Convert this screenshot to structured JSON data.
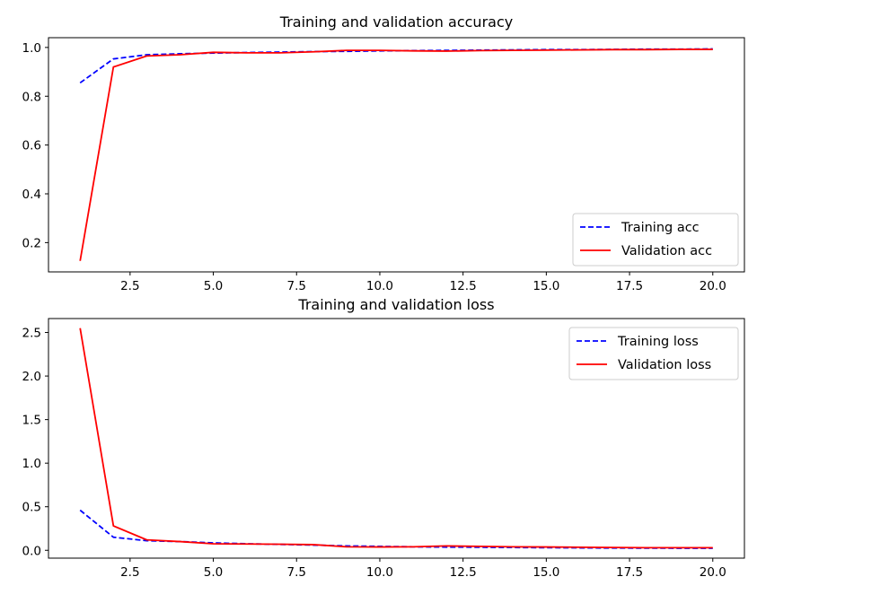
{
  "chart_data": [
    {
      "type": "line",
      "title": "Training and validation accuracy",
      "xlabel": "",
      "ylabel": "",
      "xlim": [
        0.05,
        20.95
      ],
      "ylim": [
        0.08,
        1.04
      ],
      "x_ticks": [
        2.5,
        5.0,
        7.5,
        10.0,
        12.5,
        15.0,
        17.5,
        20.0
      ],
      "x_tick_labels": [
        "2.5",
        "5.0",
        "7.5",
        "10.0",
        "12.5",
        "15.0",
        "17.5",
        "20.0"
      ],
      "y_ticks": [
        0.2,
        0.4,
        0.6,
        0.8,
        1.0
      ],
      "y_tick_labels": [
        "0.2",
        "0.4",
        "0.6",
        "0.8",
        "1.0"
      ],
      "grid": false,
      "legend_position": "lower-right",
      "x": [
        1,
        2,
        3,
        4,
        5,
        6,
        7,
        8,
        9,
        10,
        11,
        12,
        13,
        14,
        15,
        16,
        17,
        18,
        19,
        20
      ],
      "series": [
        {
          "name": "Training acc",
          "color": "#0000ff",
          "style": "dashed",
          "values": [
            0.855,
            0.953,
            0.97,
            0.974,
            0.977,
            0.979,
            0.981,
            0.983,
            0.984,
            0.986,
            0.987,
            0.988,
            0.989,
            0.99,
            0.991,
            0.991,
            0.992,
            0.993,
            0.993,
            0.994
          ]
        },
        {
          "name": "Validation acc",
          "color": "#ff0000",
          "style": "solid",
          "values": [
            0.125,
            0.92,
            0.965,
            0.97,
            0.98,
            0.978,
            0.978,
            0.982,
            0.988,
            0.988,
            0.986,
            0.985,
            0.987,
            0.988,
            0.989,
            0.99,
            0.991,
            0.991,
            0.992,
            0.992
          ]
        }
      ]
    },
    {
      "type": "line",
      "title": "Training and validation loss",
      "xlabel": "",
      "ylabel": "",
      "xlim": [
        0.05,
        20.95
      ],
      "ylim": [
        -0.09,
        2.66
      ],
      "x_ticks": [
        2.5,
        5.0,
        7.5,
        10.0,
        12.5,
        15.0,
        17.5,
        20.0
      ],
      "x_tick_labels": [
        "2.5",
        "5.0",
        "7.5",
        "10.0",
        "12.5",
        "15.0",
        "17.5",
        "20.0"
      ],
      "y_ticks": [
        0.0,
        0.5,
        1.0,
        1.5,
        2.0,
        2.5
      ],
      "y_tick_labels": [
        "0.0",
        "0.5",
        "1.0",
        "1.5",
        "2.0",
        "2.5"
      ],
      "grid": false,
      "legend_position": "upper-right",
      "x": [
        1,
        2,
        3,
        4,
        5,
        6,
        7,
        8,
        9,
        10,
        11,
        12,
        13,
        14,
        15,
        16,
        17,
        18,
        19,
        20
      ],
      "series": [
        {
          "name": "Training loss",
          "color": "#0000ff",
          "style": "dashed",
          "values": [
            0.46,
            0.15,
            0.11,
            0.1,
            0.085,
            0.075,
            0.068,
            0.06,
            0.05,
            0.045,
            0.04,
            0.037,
            0.035,
            0.032,
            0.03,
            0.028,
            0.026,
            0.025,
            0.024,
            0.023
          ]
        },
        {
          "name": "Validation loss",
          "color": "#ff0000",
          "style": "solid",
          "values": [
            2.55,
            0.28,
            0.12,
            0.1,
            0.075,
            0.072,
            0.07,
            0.065,
            0.04,
            0.038,
            0.04,
            0.05,
            0.045,
            0.04,
            0.038,
            0.035,
            0.032,
            0.03,
            0.03,
            0.03
          ]
        }
      ]
    }
  ]
}
